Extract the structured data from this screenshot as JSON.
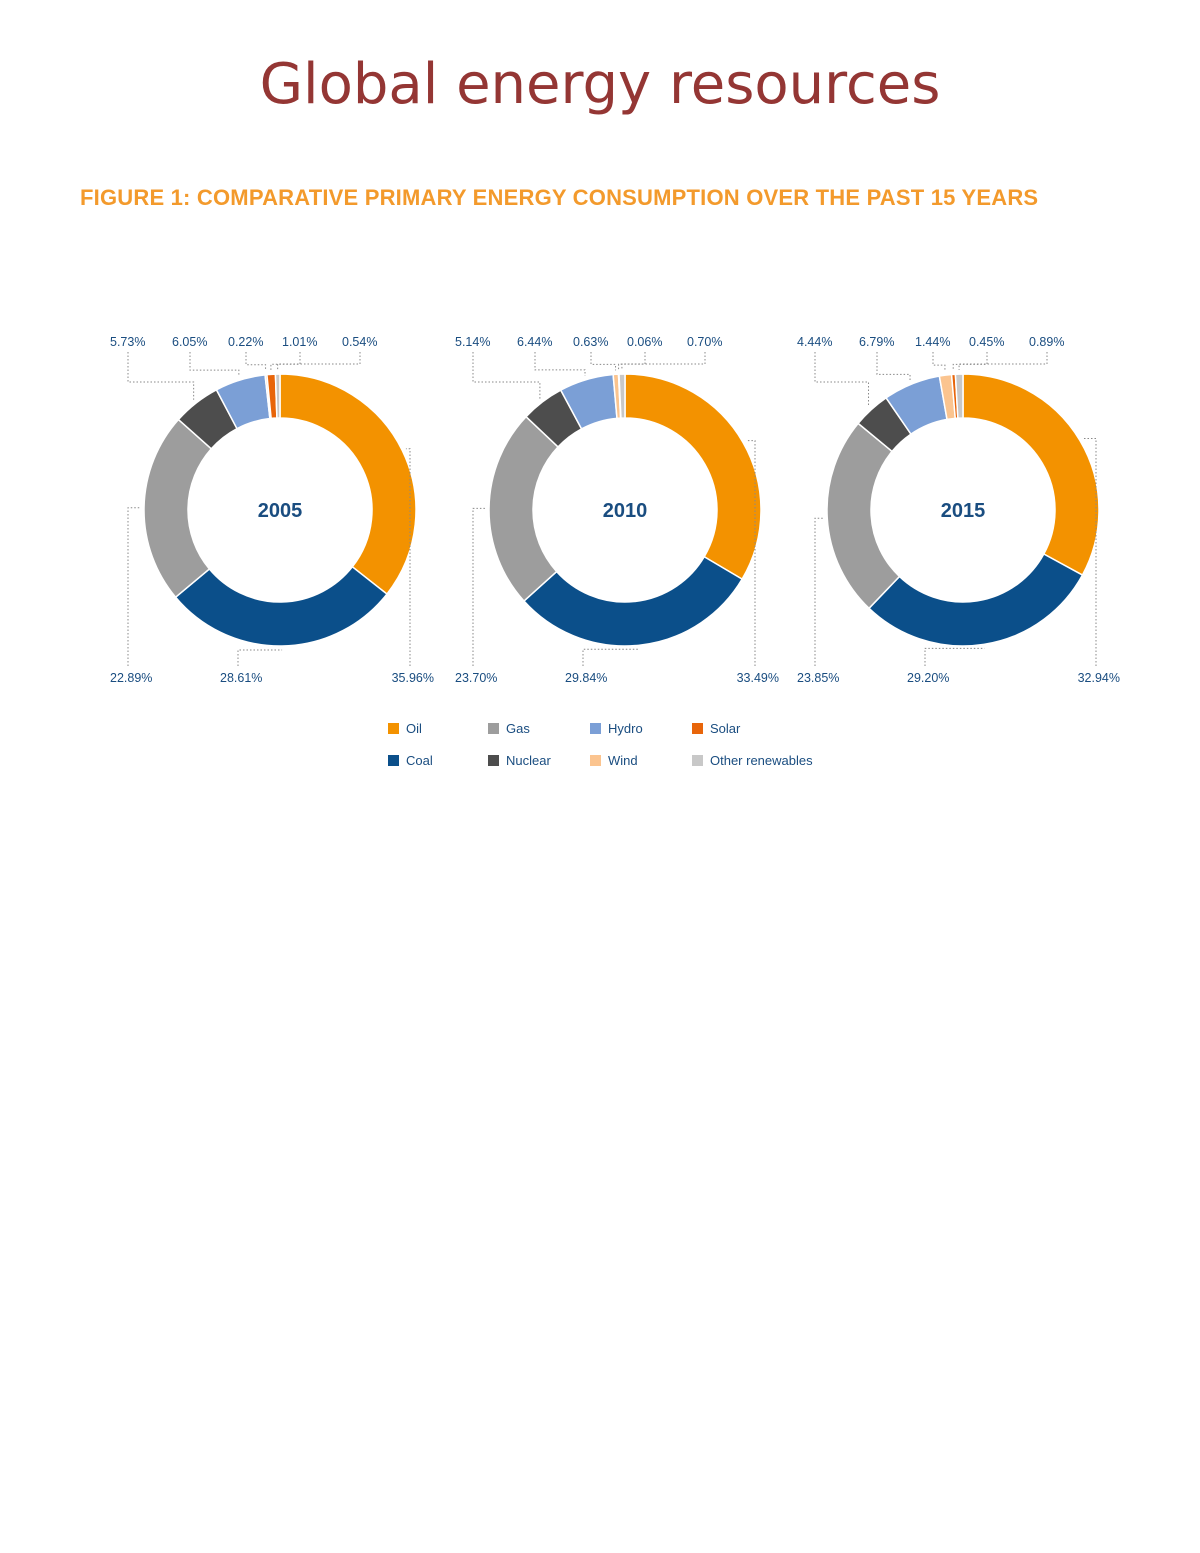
{
  "page": {
    "title": "Global energy resources",
    "figure_caption": "FIGURE 1: COMPARATIVE PRIMARY ENERGY CONSUMPTION OVER THE PAST 15 YEARS"
  },
  "colors": {
    "title": "#943634",
    "caption": "#f39a2c",
    "Oil": "#f39200",
    "Coal": "#0b4f8a",
    "Gas": "#9d9d9d",
    "Nuclear": "#4d4d4d",
    "Hydro": "#7b9fd6",
    "Wind": "#fbc48f",
    "Solar": "#e8650a",
    "Other renewables": "#c8c8c8"
  },
  "chart_data": [
    {
      "type": "pie",
      "center_label": "2005",
      "slices": [
        {
          "name": "Oil",
          "value": 35.96,
          "label": "35.96%"
        },
        {
          "name": "Coal",
          "value": 28.61,
          "label": "28.61%"
        },
        {
          "name": "Gas",
          "value": 22.89,
          "label": "22.89%"
        },
        {
          "name": "Nuclear",
          "value": 5.73,
          "label": "5.73%"
        },
        {
          "name": "Hydro",
          "value": 6.05,
          "label": "6.05%"
        },
        {
          "name": "Wind",
          "value": 0.22,
          "label": "0.22%"
        },
        {
          "name": "Solar",
          "value": 1.01,
          "label": "1.01%"
        },
        {
          "name": "Other renewables",
          "value": 0.54,
          "label": "0.54%"
        }
      ]
    },
    {
      "type": "pie",
      "center_label": "2010",
      "slices": [
        {
          "name": "Oil",
          "value": 33.49,
          "label": "33.49%"
        },
        {
          "name": "Coal",
          "value": 29.84,
          "label": "29.84%"
        },
        {
          "name": "Gas",
          "value": 23.7,
          "label": "23.70%"
        },
        {
          "name": "Nuclear",
          "value": 5.14,
          "label": "5.14%"
        },
        {
          "name": "Hydro",
          "value": 6.44,
          "label": "6.44%"
        },
        {
          "name": "Wind",
          "value": 0.63,
          "label": "0.63%"
        },
        {
          "name": "Solar",
          "value": 0.06,
          "label": "0.06%"
        },
        {
          "name": "Other renewables",
          "value": 0.7,
          "label": "0.70%"
        }
      ]
    },
    {
      "type": "pie",
      "center_label": "2015",
      "slices": [
        {
          "name": "Oil",
          "value": 32.94,
          "label": "32.94%"
        },
        {
          "name": "Coal",
          "value": 29.2,
          "label": "29.20%"
        },
        {
          "name": "Gas",
          "value": 23.85,
          "label": "23.85%"
        },
        {
          "name": "Nuclear",
          "value": 4.44,
          "label": "4.44%"
        },
        {
          "name": "Hydro",
          "value": 6.79,
          "label": "6.79%"
        },
        {
          "name": "Wind",
          "value": 1.44,
          "label": "1.44%"
        },
        {
          "name": "Solar",
          "value": 0.45,
          "label": "0.45%"
        },
        {
          "name": "Other renewables",
          "value": 0.89,
          "label": "0.89%"
        }
      ]
    }
  ],
  "legend": {
    "placement": "bottom-center",
    "entries": [
      "Oil",
      "Gas",
      "Hydro",
      "Solar",
      "Coal",
      "Nuclear",
      "Wind",
      "Other renewables"
    ]
  }
}
